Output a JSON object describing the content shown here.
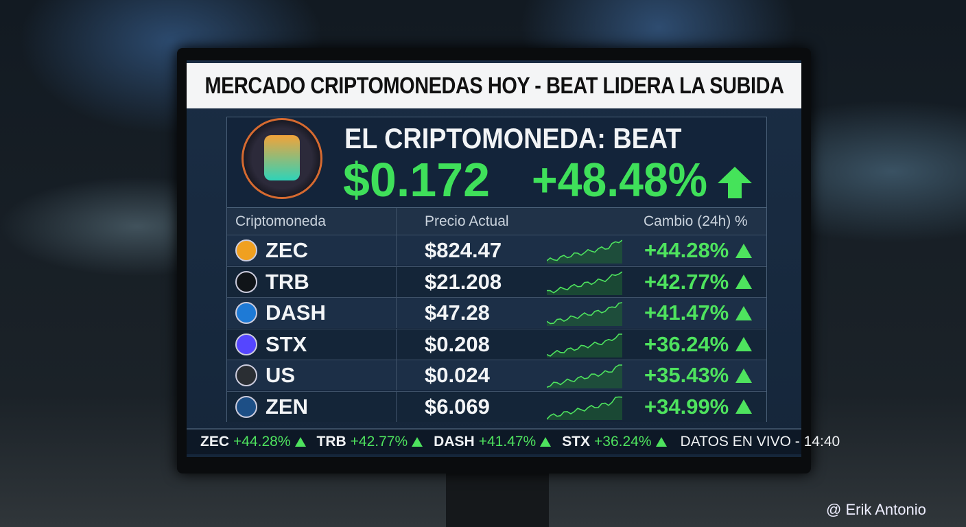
{
  "header": {
    "title": "MERCADO CRIPTOMONEDAS HOY - BEAT LIDERA LA SUBIDA"
  },
  "feature": {
    "label": "EL CRIPTOMONEDA: BEAT",
    "price": "$0.172",
    "change": "+48.48%"
  },
  "table": {
    "columns": [
      "Criptomoneda",
      "Precio Actual",
      "Cambio (24h) %"
    ],
    "rows": [
      [
        "ZEC",
        "$824.47",
        "+44.28%"
      ],
      [
        "TRB",
        "$21.208",
        "+42.77%"
      ],
      [
        "DASH",
        "$47.28",
        "+41.47%"
      ],
      [
        "STX",
        "$0.208",
        "+36.24%"
      ],
      [
        "US",
        "$0.024",
        "+35.43%"
      ],
      [
        "ZEN",
        "$6.069",
        "+34.99%"
      ]
    ]
  },
  "ticker": {
    "items": [
      [
        "ZEC",
        "+44.28%"
      ],
      [
        "TRB",
        "+42.77%"
      ],
      [
        "DASH",
        "+41.47%"
      ],
      [
        "STX",
        "+36.24%"
      ]
    ],
    "status": "DATOS EN VIVO - 14:40"
  },
  "watermark": "@ Erik Antonio"
}
